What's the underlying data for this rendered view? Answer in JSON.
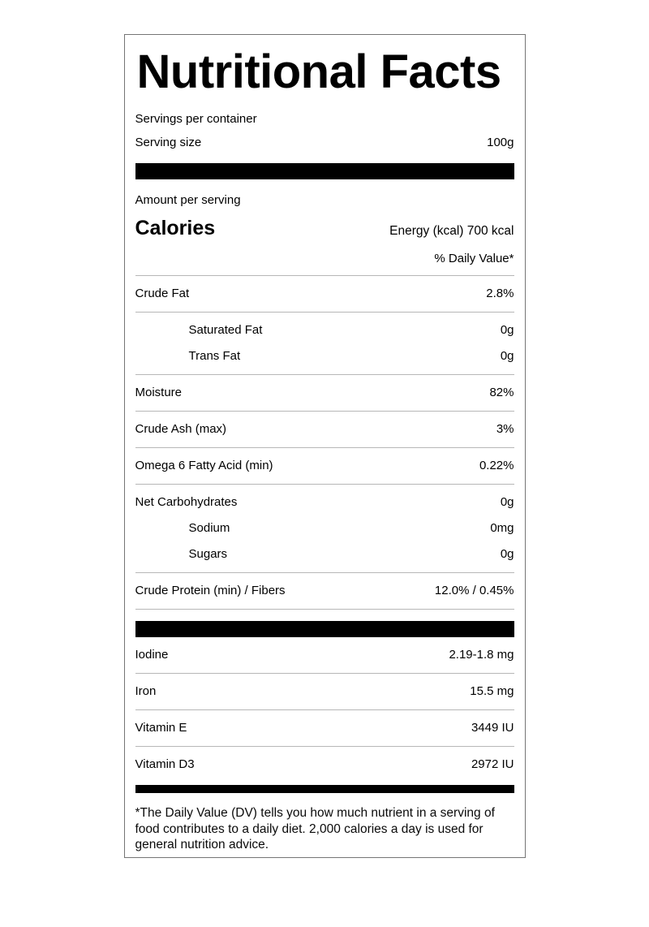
{
  "colors": {
    "text": "#000000",
    "bar": "#000000",
    "divider": "#b7b7b7",
    "card_border": "#757575",
    "background": "#ffffff"
  },
  "label": {
    "title": "Nutritional Facts",
    "servings_row": {
      "label": "Servings per container",
      "value": ""
    },
    "serving_size_row": {
      "label": "Serving size",
      "value": "100g"
    },
    "amount_per_serving": "Amount per serving",
    "calories_row": {
      "label": "Calories",
      "value": "Energy (kcal) 700 kcal"
    },
    "daily_value_header": "% Daily Value*",
    "nutrients": [
      {
        "label": "Crude Fat",
        "value": "2.8%"
      },
      {
        "label": "Saturated Fat",
        "value": "0g"
      },
      {
        "label": "Trans Fat",
        "value": "0g"
      },
      {
        "label": "Moisture",
        "value": "82%"
      },
      {
        "label": "Crude Ash (max)",
        "value": "3%"
      },
      {
        "label": "Omega 6 Fatty Acid (min)",
        "value": "0.22%"
      },
      {
        "label": "Net Carbohydrates",
        "value": "0g"
      },
      {
        "label": "Sodium",
        "value": "0mg"
      },
      {
        "label": "Sugars",
        "value": "0g"
      },
      {
        "label": "Crude Protein (min) / Fibers",
        "value": "12.0% / 0.45%"
      }
    ],
    "micronutrients": [
      {
        "label": "Iodine",
        "value": "2.19-1.8 mg"
      },
      {
        "label": "Iron",
        "value": "15.5 mg"
      },
      {
        "label": "Vitamin E",
        "value": "3449 IU"
      },
      {
        "label": "Vitamin D3",
        "value": "2972 IU"
      }
    ],
    "footnote": "*The Daily Value (DV) tells you how much nutrient in a serving of food contributes to a daily diet. 2,000 calories a day is used for general nutrition advice."
  }
}
